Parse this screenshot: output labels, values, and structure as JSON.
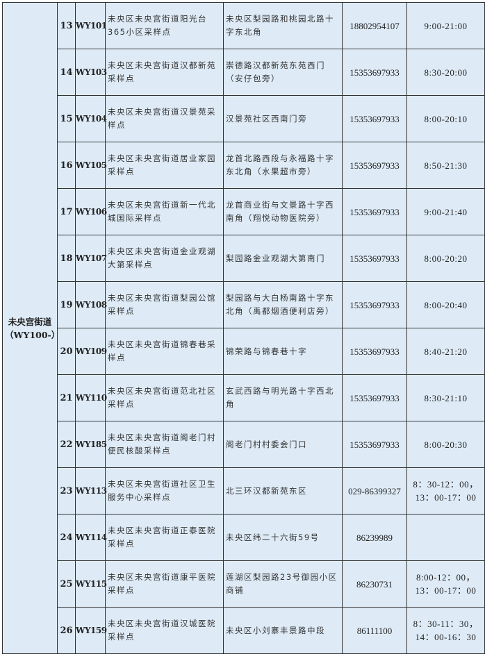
{
  "district": {
    "name": "未央宫街道",
    "code": "（WY100-）"
  },
  "rows": [
    {
      "no": "13",
      "code": "WY101",
      "name": "未央区未央宫街道阳光台365小区采样点",
      "address": "未央区梨园路和桃园北路十字东北角",
      "phone": "18802954107",
      "hours": "9:00-21:00"
    },
    {
      "no": "14",
      "code": "WY103",
      "name": "未央区未央宫街道汉都新苑采样点",
      "address": "崇德路汉都新苑东苑西门（安仔包旁）",
      "phone": "15353697933",
      "hours": "8:30-20:00"
    },
    {
      "no": "15",
      "code": "WY104",
      "name": "未央区未央宫街道汉景苑采样点",
      "address": "汉景苑社区西南门旁",
      "phone": "15353697933",
      "hours": "8:00-20:10"
    },
    {
      "no": "16",
      "code": "WY105",
      "name": "未央区未央宫街道居业家园采样点",
      "address": "龙首北路西段与永福路十字东北角（水果超市旁）",
      "phone": "15353697933",
      "hours": "8:50-21:30"
    },
    {
      "no": "17",
      "code": "WY106",
      "name": "未央区未央宫街道新一代北城国际采样点",
      "address": "龙首商业街与文景路十字西南角（翔悦动物医院旁）",
      "phone": "15353697933",
      "hours": "9:00-21:40"
    },
    {
      "no": "18",
      "code": "WY107",
      "name": "未央区未央宫街道金业观湖大第采样点",
      "address": "梨园路金业观湖大第南门",
      "phone": "15353697933",
      "hours": "8:00-20:20"
    },
    {
      "no": "19",
      "code": "WY108",
      "name": "未央区未央宫街道梨园公馆采样点",
      "address": "梨园路与大白杨南路十字东北角（禹都烟酒便利店旁）",
      "phone": "15353697933",
      "hours": "8:00-20:40"
    },
    {
      "no": "20",
      "code": "WY109",
      "name": "未央区未央宫街道锦春巷采样点",
      "address": "锦荣路与锦春巷十字",
      "phone": "15353697933",
      "hours": "8:40-21:20"
    },
    {
      "no": "21",
      "code": "WY110",
      "name": "未央区未央宫街道范北社区采样点",
      "address": "玄武西路与明光路十字西北角",
      "phone": "15353697933",
      "hours": "8:30-21:10"
    },
    {
      "no": "22",
      "code": "WY185",
      "name": "未央区未央宫街道阁老门村便民核酸采样点",
      "address": "阁老门村村委会门口",
      "phone": "15353697933",
      "hours": "8:00-20:30"
    },
    {
      "no": "23",
      "code": "WY113",
      "name": "未央区未央宫街道社区卫生服务中心采样点",
      "address": "北三环汉都新苑东区",
      "phone": "029-86399327",
      "hours": "8：30-12：00，13：00-17：00"
    },
    {
      "no": "24",
      "code": "WY114",
      "name": "未央区未央宫街道正泰医院采样点",
      "address": "未央区纬二十六街59号",
      "phone": "86239989",
      "hours": ""
    },
    {
      "no": "25",
      "code": "WY115",
      "name": "未央区未央宫街道康平医院采样点",
      "address": "莲湖区梨园路23号御园小区商铺",
      "phone": "86230731",
      "hours": "8:00-12：00，13：00-17：00"
    },
    {
      "no": "26",
      "code": "WY159",
      "name": "未央区未央宫街道汉城医院采样点",
      "address": "未央区小刘寨丰景路中段",
      "phone": "86111100",
      "hours": "8：30-11：30，14：00-16：30"
    }
  ]
}
